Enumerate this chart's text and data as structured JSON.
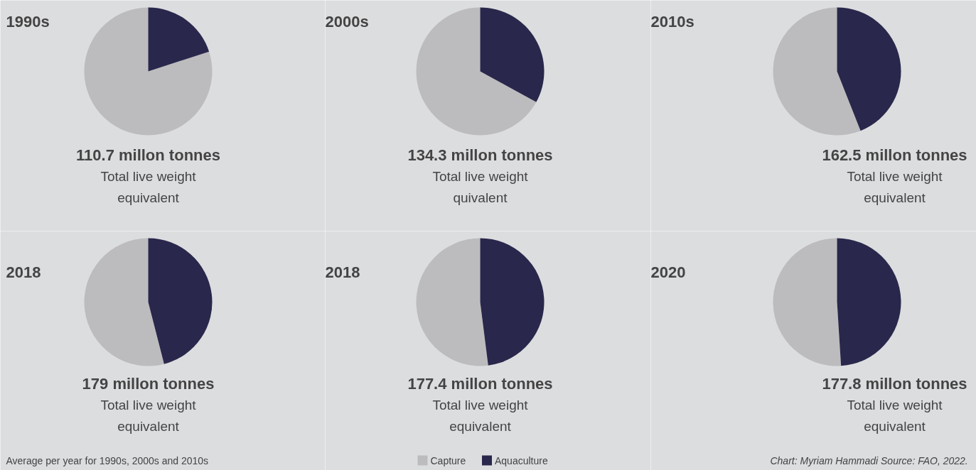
{
  "chart_data": [
    {
      "type": "pie",
      "title": "1990s",
      "subtitle": "110.7 millon tonnes",
      "annotations": [
        "Total live weight equivalent"
      ],
      "categories": [
        "Capture",
        "Aquaculture"
      ],
      "values": [
        80,
        20
      ],
      "colors": [
        "#bcbcbe",
        "#29274b"
      ],
      "legend": "bottom"
    },
    {
      "type": "pie",
      "title": "2000s",
      "subtitle": "134.3 millon tonnes",
      "annotations": [
        "Total live weight quivalent"
      ],
      "categories": [
        null,
        null
      ],
      "values": [
        67,
        33
      ],
      "colors": [
        "#bcbcbe",
        "#29274b"
      ]
    },
    {
      "type": "pie",
      "title": "2010s",
      "subtitle": "162.5 millon tonnes",
      "annotations": [
        "Total live weight equivalent"
      ],
      "categories": [
        null,
        null
      ],
      "values": [
        56,
        44
      ],
      "colors": [
        "#bcbcbe",
        "#29274b"
      ]
    },
    {
      "type": "pie",
      "title": "2018",
      "subtitle": "179 millon tonnes",
      "annotations": [
        "Total live weight equivalent",
        "Average per year for 1990s, 2000s and 2010s"
      ],
      "categories": [
        null,
        null
      ],
      "values": [
        54,
        46
      ],
      "colors": [
        "#bcbcbe",
        "#29274b"
      ]
    },
    {
      "type": "pie",
      "title": "2018",
      "subtitle": "177.4 millon tonnes",
      "annotations": [
        "Total live weight equivalent"
      ],
      "categories": [
        null,
        null
      ],
      "values": [
        52,
        48
      ],
      "colors": [
        "#bcbcbe",
        "#29274b"
      ]
    },
    {
      "type": "pie",
      "title": "2020",
      "subtitle": "177.8 millon tonnes",
      "annotations": [
        "Total live weight equivalent",
        "Chart: Myriam Hammadi   Source: FAO, 2022."
      ],
      "categories": [
        null,
        null
      ],
      "values": [
        51,
        49
      ],
      "colors": [
        "#bcbcbe",
        "#29274b"
      ]
    }
  ]
}
